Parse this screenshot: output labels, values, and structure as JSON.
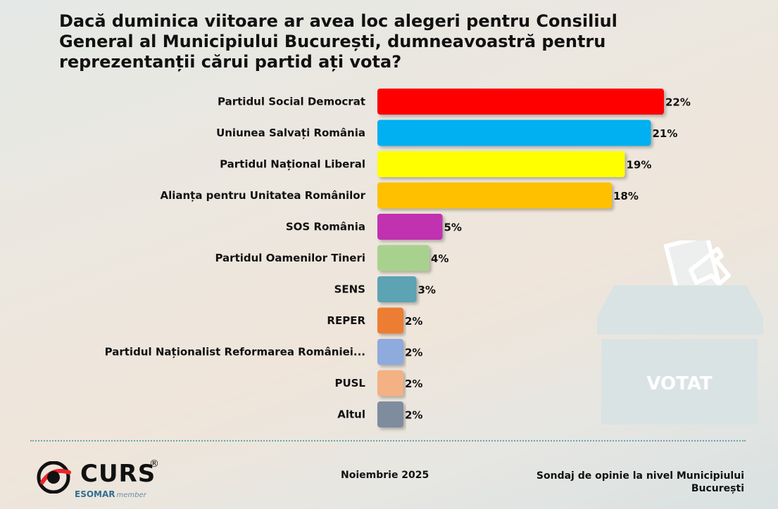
{
  "title": "Dacă duminica viitoare ar avea loc alegeri pentru Consiliul General al Municipiului București, dumneavoastră pentru reprezentanții cărui partid ați vota?",
  "chart_data": {
    "type": "bar",
    "orientation": "horizontal",
    "categories": [
      "Partidul Social Democrat",
      "Uniunea Salvați România",
      "Partidul Național Liberal",
      "Alianța pentru Unitatea Românilor",
      "SOS România",
      "Partidul Oamenilor Tineri",
      "SENS",
      "REPER",
      "Partidul Naționalist Reformarea României...",
      "PUSL",
      "Altul"
    ],
    "values": [
      22,
      21,
      19,
      18,
      5,
      4,
      3,
      2,
      2,
      2,
      2
    ],
    "value_labels": [
      "22%",
      "21%",
      "19%",
      "18%",
      "5%",
      "4%",
      "3%",
      "2%",
      "2%",
      "2%",
      "2%"
    ],
    "colors": [
      "#ff0000",
      "#00b0f0",
      "#ffff00",
      "#ffc000",
      "#c030b0",
      "#a9d18e",
      "#5ba3b3",
      "#ed7d31",
      "#8faadc",
      "#f4b183",
      "#7f8c9e"
    ],
    "xlim": [
      0,
      22
    ],
    "grid": false,
    "legend": "none"
  },
  "graphic": {
    "icon": "ballot-box-icon",
    "label": "VOTAT"
  },
  "footer": {
    "logo": "CURS",
    "logo_mark": "®",
    "esomar": "ESOMAR",
    "esomar_member": "member",
    "date": "Noiembrie 2025",
    "survey": "Sondaj de opinie la nivel Municipiului București"
  }
}
